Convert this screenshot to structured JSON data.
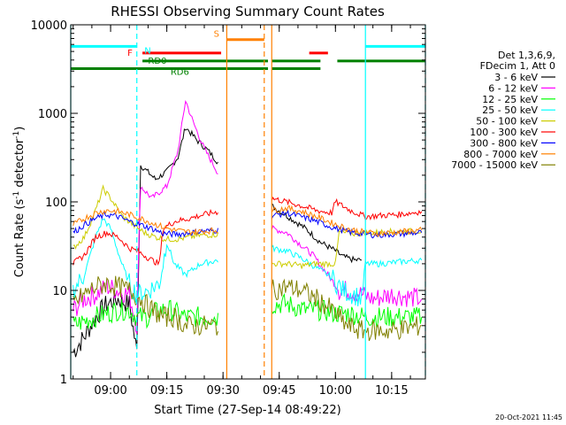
{
  "chart_data": {
    "type": "line",
    "title": "RHESSI Observing Summary Count Rates",
    "xlabel": "Start Time (27-Sep-14 08:49:22)",
    "ylabel_main": "Count Rate (s",
    "ylabel_sup1": "-1",
    "ylabel_mid": " detector",
    "ylabel_sup2": "-1",
    "ylabel_end": ")",
    "y_scale": "log",
    "ylim": [
      1,
      10000
    ],
    "xlim": [
      "08:49:22",
      "10:24:00"
    ],
    "x_ticks": [
      "09:00",
      "09:15",
      "09:30",
      "09:45",
      "10:00",
      "10:15"
    ],
    "y_ticks": [
      "1",
      "10",
      "100",
      "1000",
      "10000"
    ],
    "legend_header": [
      "Det 1,3,6,9,",
      "FDecim 1, Att 0"
    ],
    "legend_position": "right",
    "timestamp": "20-Oct-2021 11:45",
    "series": [
      {
        "name": "3 - 6 keV",
        "color": "#000000"
      },
      {
        "name": "6 - 12 keV",
        "color": "#ff00ff"
      },
      {
        "name": "12 - 25 keV",
        "color": "#00ff00"
      },
      {
        "name": "25 - 50 keV",
        "color": "#00ffff"
      },
      {
        "name": "50 - 100 keV",
        "color": "#cccc00"
      },
      {
        "name": "100 - 300 keV",
        "color": "#ff0000"
      },
      {
        "name": "300 - 800 keV",
        "color": "#0000ff"
      },
      {
        "name": "800 - 7000 keV",
        "color": "#ff8000"
      },
      {
        "name": "7000 - 15000 keV",
        "color": "#808000"
      }
    ],
    "flag_bars": [
      {
        "label": "N",
        "color": "#00ffff",
        "y": 5700,
        "segments": [
          [
            "08:49:22",
            "09:07:00"
          ],
          [
            "10:08:00",
            "10:24:00"
          ]
        ]
      },
      {
        "label": "F",
        "color": "#ff0000",
        "y": 4800,
        "segments": [
          [
            "09:08:30",
            "09:29:30"
          ],
          [
            "09:53:00",
            "09:58:00"
          ]
        ]
      },
      {
        "label": "S",
        "color": "#ff8000",
        "y": 6800,
        "segments": [
          [
            "09:31:00",
            "09:41:00"
          ]
        ]
      },
      {
        "label": "RD0",
        "color": "#008000",
        "y": 3900,
        "segments": [
          [
            "09:08:30",
            "09:42:00"
          ],
          [
            "09:43:00",
            "09:56:00"
          ],
          [
            "10:00:30",
            "10:24:00"
          ]
        ]
      },
      {
        "label": "RD6",
        "color": "#008000",
        "y": 3200,
        "segments": [
          [
            "08:49:22",
            "09:42:00"
          ],
          [
            "09:43:00",
            "09:56:00"
          ]
        ]
      }
    ],
    "vlines": [
      {
        "time": "08:49:22",
        "color": "#00ffff",
        "style": "solid"
      },
      {
        "time": "09:07:00",
        "color": "#00ffff",
        "style": "dashed"
      },
      {
        "time": "09:31:00",
        "color": "#ff8000",
        "style": "solid"
      },
      {
        "time": "09:41:00",
        "color": "#ff8000",
        "style": "dashed"
      },
      {
        "time": "09:43:00",
        "color": "#ff8000",
        "style": "solid"
      },
      {
        "time": "10:08:00",
        "color": "#00ffff",
        "style": "solid"
      },
      {
        "time": "10:24:00",
        "color": "#00ffff",
        "style": "dashed"
      }
    ],
    "data_gap": [
      "09:32:00",
      "09:42:30"
    ],
    "series_points": {
      "3 - 6 keV": [
        [
          "08:50",
          2
        ],
        [
          "08:53",
          3
        ],
        [
          "08:56",
          5
        ],
        [
          "08:59",
          7
        ],
        [
          "09:02",
          8
        ],
        [
          "09:05",
          7
        ],
        [
          "09:07",
          2
        ],
        [
          "09:08",
          260
        ],
        [
          "09:12",
          180
        ],
        [
          "09:15",
          220
        ],
        [
          "09:18",
          320
        ],
        [
          "09:20",
          700
        ],
        [
          "09:23",
          500
        ],
        [
          "09:26",
          380
        ],
        [
          "09:29",
          270
        ],
        [
          "09:43",
          90
        ],
        [
          "09:47",
          70
        ],
        [
          "09:52",
          50
        ],
        [
          "09:56",
          35
        ],
        [
          "10:00",
          28
        ],
        [
          "10:02",
          24
        ],
        [
          "10:05",
          22
        ],
        [
          "10:07",
          22
        ]
      ],
      "6 - 12 keV": [
        [
          "08:50",
          6
        ],
        [
          "08:53",
          8
        ],
        [
          "08:56",
          9
        ],
        [
          "08:59",
          11
        ],
        [
          "09:02",
          10
        ],
        [
          "09:05",
          9
        ],
        [
          "09:07",
          4
        ],
        [
          "09:08",
          150
        ],
        [
          "09:11",
          110
        ],
        [
          "09:15",
          150
        ],
        [
          "09:18",
          380
        ],
        [
          "09:20",
          1400
        ],
        [
          "09:22",
          800
        ],
        [
          "09:25",
          400
        ],
        [
          "09:29",
          200
        ],
        [
          "09:43",
          50
        ],
        [
          "09:47",
          45
        ],
        [
          "09:50",
          35
        ],
        [
          "09:54",
          25
        ],
        [
          "09:58",
          15
        ],
        [
          "10:01",
          10
        ],
        [
          "10:04",
          10
        ],
        [
          "10:07",
          9
        ],
        [
          "10:10",
          8
        ],
        [
          "10:15",
          9
        ],
        [
          "10:23",
          8
        ]
      ],
      "12 - 25 keV": [
        [
          "08:50",
          4
        ],
        [
          "08:53",
          4.5
        ],
        [
          "08:56",
          5
        ],
        [
          "08:59",
          5.5
        ],
        [
          "09:02",
          6
        ],
        [
          "09:05",
          6
        ],
        [
          "09:07",
          5
        ],
        [
          "09:10",
          5
        ],
        [
          "09:13",
          6
        ],
        [
          "09:16",
          6
        ],
        [
          "09:20",
          5
        ],
        [
          "09:23",
          5
        ],
        [
          "09:26",
          5
        ],
        [
          "09:29",
          5
        ],
        [
          "09:43",
          7
        ],
        [
          "09:47",
          7
        ],
        [
          "09:52",
          6
        ],
        [
          "09:56",
          6
        ],
        [
          "10:00",
          5.5
        ],
        [
          "10:04",
          5.5
        ],
        [
          "10:08",
          5
        ],
        [
          "10:12",
          5
        ],
        [
          "10:16",
          5
        ],
        [
          "10:23",
          5
        ]
      ],
      "25 - 50 keV": [
        [
          "08:50",
          10
        ],
        [
          "08:53",
          15
        ],
        [
          "08:56",
          40
        ],
        [
          "08:58",
          65
        ],
        [
          "09:00",
          50
        ],
        [
          "09:03",
          20
        ],
        [
          "09:05",
          12
        ],
        [
          "09:07",
          9
        ],
        [
          "09:10",
          10
        ],
        [
          "09:13",
          12
        ],
        [
          "09:15",
          35
        ],
        [
          "09:17",
          20
        ],
        [
          "09:20",
          15
        ],
        [
          "09:24",
          20
        ],
        [
          "09:29",
          22
        ],
        [
          "09:43",
          30
        ],
        [
          "09:47",
          28
        ],
        [
          "09:51",
          23
        ],
        [
          "09:55",
          18
        ],
        [
          "09:59",
          14
        ],
        [
          "10:02",
          10
        ],
        [
          "10:05",
          9
        ],
        [
          "10:07",
          8
        ],
        [
          "10:08",
          20
        ],
        [
          "10:12",
          20
        ],
        [
          "10:17",
          21
        ],
        [
          "10:23",
          22
        ]
      ],
      "50 - 100 keV": [
        [
          "08:50",
          30
        ],
        [
          "08:53",
          40
        ],
        [
          "08:56",
          80
        ],
        [
          "08:58",
          140
        ],
        [
          "09:00",
          110
        ],
        [
          "09:03",
          70
        ],
        [
          "09:06",
          55
        ],
        [
          "09:09",
          45
        ],
        [
          "09:12",
          40
        ],
        [
          "09:15",
          38
        ],
        [
          "09:18",
          38
        ],
        [
          "09:21",
          40
        ],
        [
          "09:24",
          42
        ],
        [
          "09:29",
          43
        ],
        [
          "09:43",
          20
        ],
        [
          "09:47",
          20
        ],
        [
          "09:51",
          19
        ],
        [
          "09:55",
          20
        ],
        [
          "10:00",
          20
        ],
        [
          "10:01",
          45
        ],
        [
          "10:05",
          44
        ],
        [
          "10:10",
          45
        ],
        [
          "10:15",
          46
        ],
        [
          "10:23",
          47
        ]
      ],
      "100 - 300 keV": [
        [
          "08:50",
          20
        ],
        [
          "08:53",
          25
        ],
        [
          "08:56",
          40
        ],
        [
          "08:59",
          45
        ],
        [
          "09:02",
          40
        ],
        [
          "09:05",
          30
        ],
        [
          "09:07",
          28
        ],
        [
          "09:09",
          25
        ],
        [
          "09:11",
          22
        ],
        [
          "09:13",
          20
        ],
        [
          "09:14",
          50
        ],
        [
          "09:17",
          60
        ],
        [
          "09:21",
          65
        ],
        [
          "09:25",
          72
        ],
        [
          "09:29",
          78
        ],
        [
          "09:43",
          110
        ],
        [
          "09:47",
          100
        ],
        [
          "09:51",
          90
        ],
        [
          "09:55",
          80
        ],
        [
          "09:59",
          75
        ],
        [
          "10:00",
          100
        ],
        [
          "10:04",
          80
        ],
        [
          "10:08",
          68
        ],
        [
          "10:12",
          70
        ],
        [
          "10:17",
          72
        ],
        [
          "10:23",
          78
        ]
      ],
      "300 - 800 keV": [
        [
          "08:50",
          45
        ],
        [
          "08:53",
          55
        ],
        [
          "08:56",
          65
        ],
        [
          "08:59",
          72
        ],
        [
          "09:02",
          68
        ],
        [
          "09:05",
          60
        ],
        [
          "09:08",
          55
        ],
        [
          "09:11",
          50
        ],
        [
          "09:14",
          44
        ],
        [
          "09:17",
          43
        ],
        [
          "09:20",
          44
        ],
        [
          "09:23",
          46
        ],
        [
          "09:26",
          47
        ],
        [
          "09:29",
          48
        ],
        [
          "09:43",
          70
        ],
        [
          "09:47",
          75
        ],
        [
          "09:51",
          68
        ],
        [
          "09:55",
          60
        ],
        [
          "09:59",
          52
        ],
        [
          "10:03",
          46
        ],
        [
          "10:07",
          44
        ],
        [
          "10:11",
          42
        ],
        [
          "10:15",
          43
        ],
        [
          "10:23",
          45
        ]
      ],
      "800 - 7000 keV": [
        [
          "08:50",
          55
        ],
        [
          "08:53",
          65
        ],
        [
          "08:56",
          75
        ],
        [
          "08:59",
          80
        ],
        [
          "09:02",
          78
        ],
        [
          "09:05",
          72
        ],
        [
          "09:08",
          65
        ],
        [
          "09:11",
          58
        ],
        [
          "09:14",
          52
        ],
        [
          "09:17",
          48
        ],
        [
          "09:20",
          46
        ],
        [
          "09:23",
          46
        ],
        [
          "09:26",
          47
        ],
        [
          "09:29",
          48
        ],
        [
          "09:43",
          80
        ],
        [
          "09:47",
          85
        ],
        [
          "09:51",
          78
        ],
        [
          "09:55",
          68
        ],
        [
          "09:59",
          58
        ],
        [
          "10:03",
          50
        ],
        [
          "10:07",
          46
        ],
        [
          "10:11",
          44
        ],
        [
          "10:15",
          45
        ],
        [
          "10:23",
          48
        ]
      ],
      "7000 - 15000 keV": [
        [
          "08:50",
          7
        ],
        [
          "08:53",
          9
        ],
        [
          "08:56",
          11
        ],
        [
          "08:59",
          12
        ],
        [
          "09:02",
          11
        ],
        [
          "09:05",
          10
        ],
        [
          "09:08",
          8
        ],
        [
          "09:11",
          6
        ],
        [
          "09:14",
          5
        ],
        [
          "09:17",
          5
        ],
        [
          "09:20",
          4
        ],
        [
          "09:23",
          4
        ],
        [
          "09:26",
          4
        ],
        [
          "09:29",
          4
        ],
        [
          "09:43",
          10
        ],
        [
          "09:47",
          11
        ],
        [
          "09:51",
          10
        ],
        [
          "09:55",
          8
        ],
        [
          "09:59",
          6
        ],
        [
          "10:03",
          4
        ],
        [
          "10:07",
          3.5
        ],
        [
          "10:11",
          3.5
        ],
        [
          "10:15",
          3.5
        ],
        [
          "10:23",
          4
        ]
      ]
    }
  }
}
